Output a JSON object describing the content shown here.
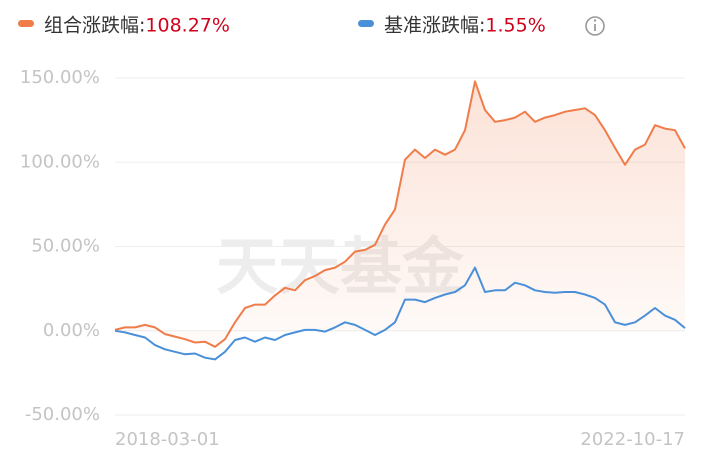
{
  "chart_data": {
    "type": "line",
    "watermark": "天天基金",
    "categories": [
      "2018-03-01",
      null,
      null,
      null,
      null,
      null,
      null,
      null,
      null,
      null,
      null,
      null,
      null,
      null,
      null,
      null,
      null,
      null,
      null,
      null,
      null,
      null,
      null,
      null,
      null,
      null,
      null,
      null,
      null,
      null,
      null,
      null,
      null,
      null,
      null,
      null,
      null,
      null,
      null,
      null,
      null,
      null,
      null,
      null,
      null,
      null,
      null,
      null,
      null,
      null,
      null,
      null,
      null,
      null,
      null,
      null,
      null,
      "2022-10-17"
    ],
    "series": [
      {
        "name": "组合涨跌幅:",
        "change_label": "108.27%",
        "color": "#f07c4a",
        "values": [
          0.5,
          2,
          2,
          3.5,
          2,
          -2,
          -3.5,
          -5,
          -7,
          -6.5,
          -9.5,
          -5,
          5,
          13.5,
          15.5,
          15.5,
          21,
          25.5,
          24,
          30,
          32.5,
          36,
          37.5,
          41,
          47,
          48,
          51,
          63,
          72,
          101.5,
          107.5,
          102.5,
          107.5,
          104.5,
          107.5,
          119,
          148,
          131,
          124,
          125,
          126.5,
          130,
          124,
          126.5,
          128,
          130,
          131,
          132,
          128,
          119,
          108.5,
          98.5,
          107.5,
          110.5,
          122,
          120,
          119,
          108.27
        ]
      },
      {
        "name": "基准涨跌幅:",
        "change_label": "1.55%",
        "color": "#4a90d9",
        "values": [
          0,
          -1,
          -2.5,
          -4,
          -8.5,
          -11,
          -12.5,
          -14,
          -13.5,
          -16,
          -17,
          -12.5,
          -5.5,
          -4,
          -6.5,
          -4,
          -5.5,
          -2.5,
          -1,
          0.5,
          0.5,
          -0.5,
          2,
          5,
          3.5,
          0.5,
          -2.5,
          0.5,
          5,
          18.5,
          18.5,
          17,
          19.5,
          21.5,
          23,
          27,
          37.5,
          23,
          24,
          24,
          28.5,
          27,
          24,
          23,
          22.5,
          23,
          23,
          21.5,
          19.5,
          15.5,
          5,
          3.5,
          5,
          9,
          13.5,
          9,
          6.5,
          1.55
        ]
      }
    ],
    "ylim": [
      -50,
      150
    ],
    "yticks": [
      {
        "value": -50,
        "label": "-50.00%"
      },
      {
        "value": 0,
        "label": "0.00%"
      },
      {
        "value": 50,
        "label": "50.00%"
      },
      {
        "value": 100,
        "label": "100.00%"
      },
      {
        "value": 150,
        "label": "150.00%"
      }
    ],
    "grid": true
  }
}
